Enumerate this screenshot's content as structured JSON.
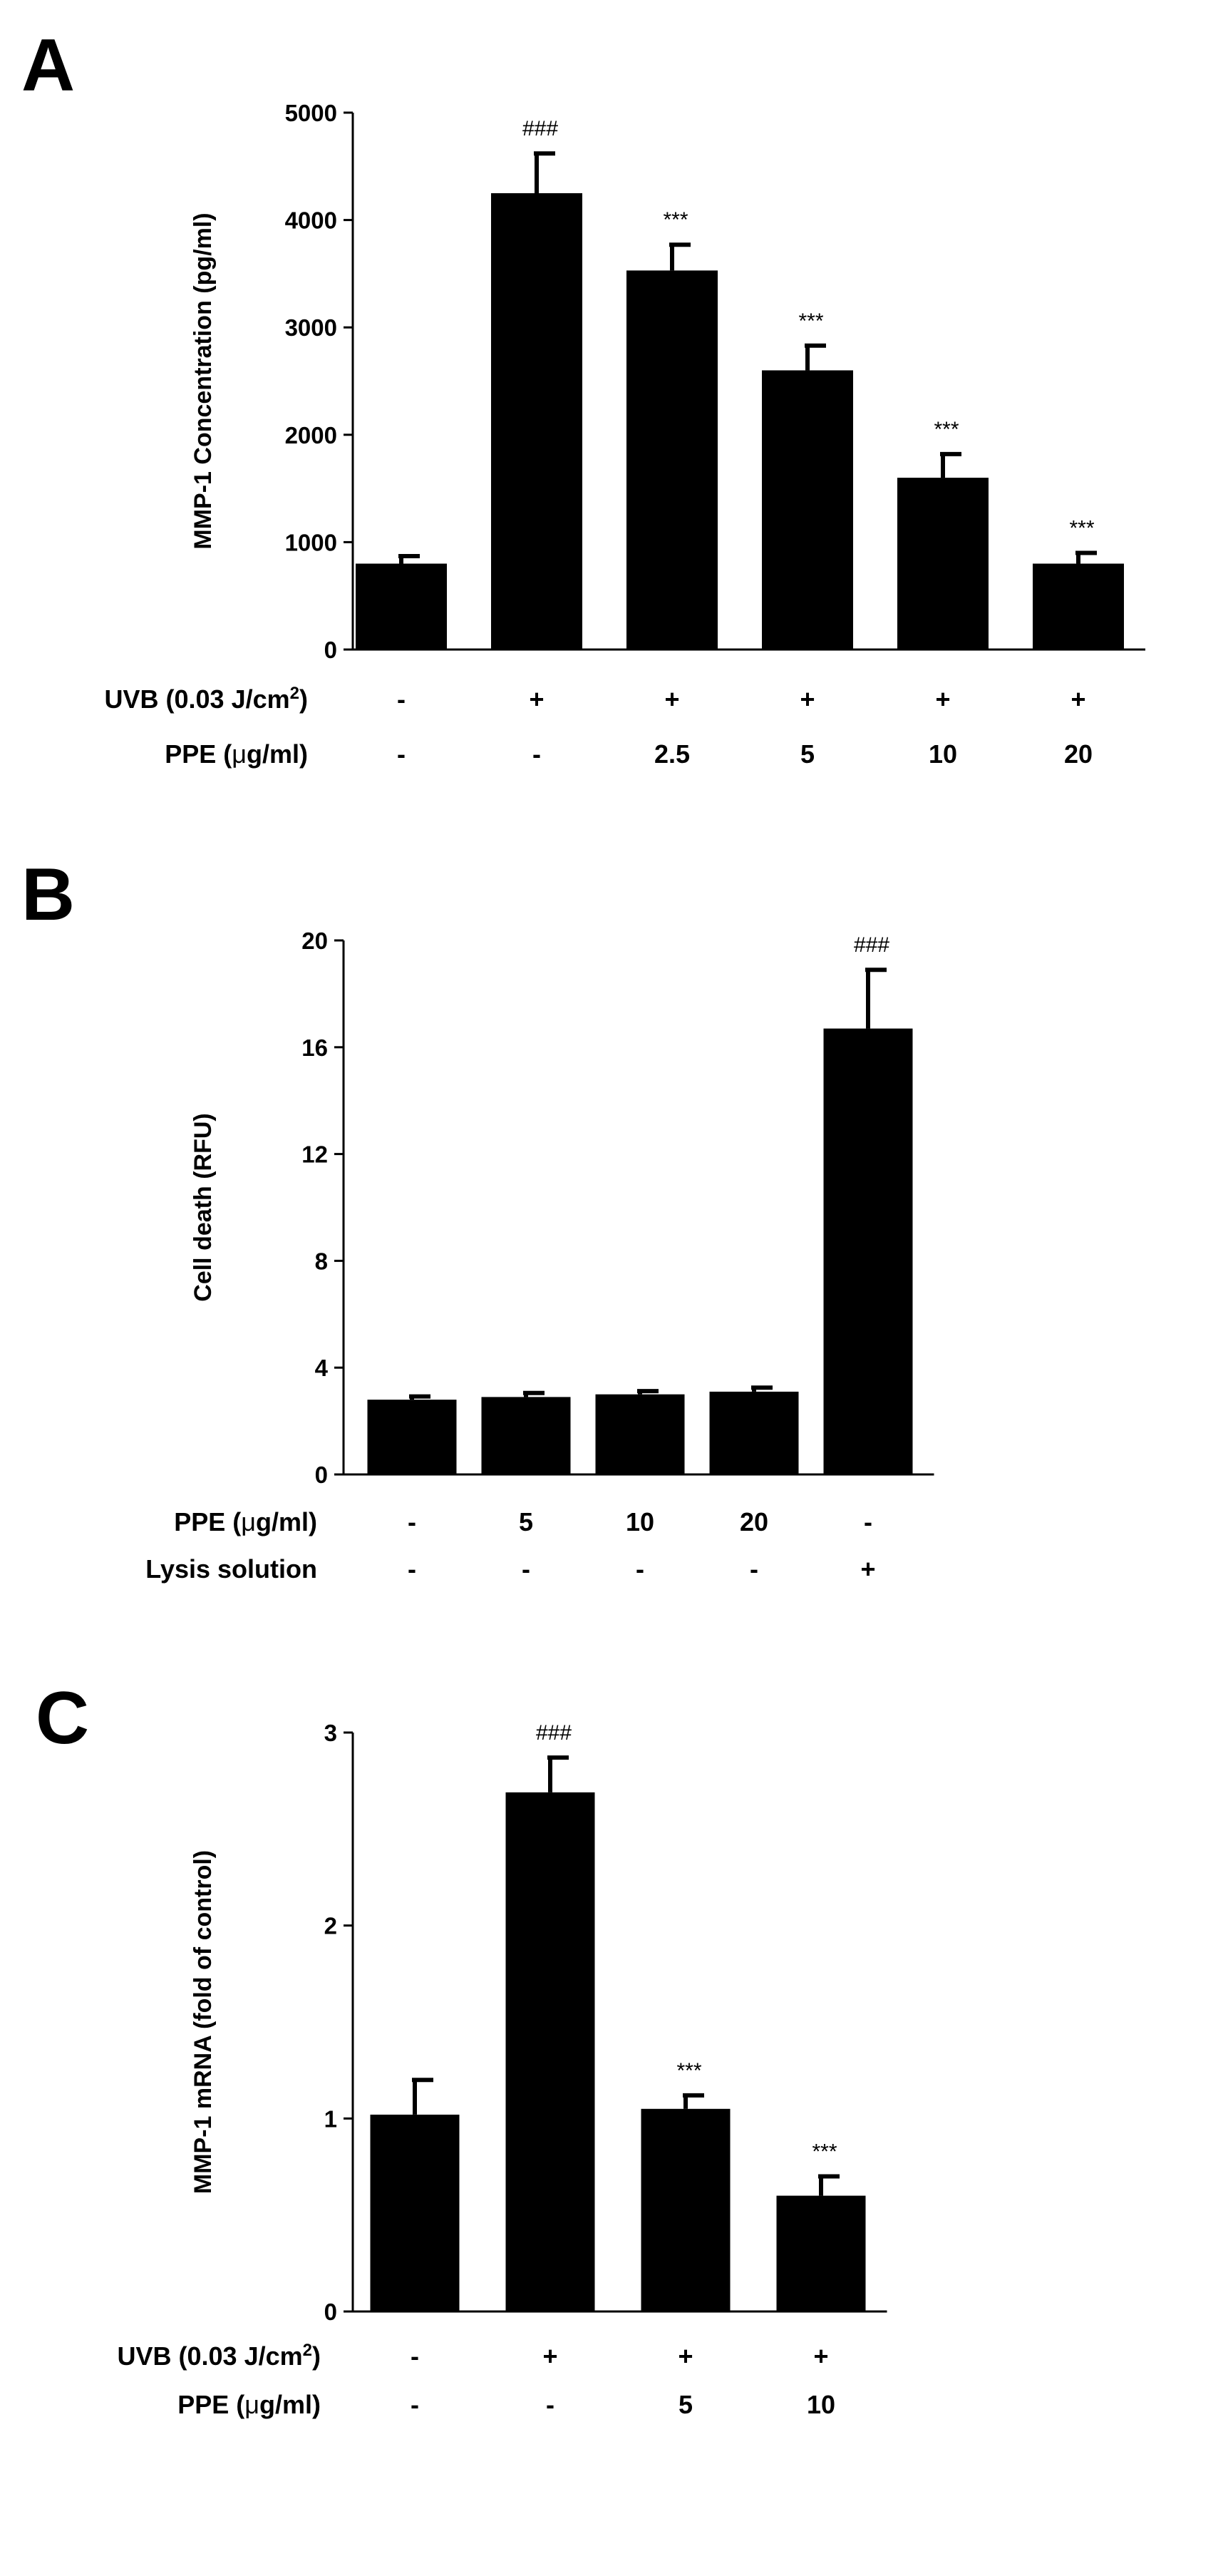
{
  "chart_data": [
    {
      "type": "bar",
      "panel": "A",
      "ylabel": "MMP-1 Concentration (pg/ml)",
      "ylim": [
        0,
        5000
      ],
      "yticks": [
        "0",
        "1000",
        "2000",
        "3000",
        "4000",
        "5000"
      ],
      "values": [
        800,
        4250,
        3530,
        2600,
        1600,
        800
      ],
      "errors": [
        70,
        370,
        240,
        230,
        220,
        100
      ],
      "significance": [
        "",
        "###",
        "***",
        "***",
        "***",
        "***"
      ],
      "rows": [
        {
          "label": "UVB (0.03 J/cm",
          "sup": "2",
          "label_end": ")",
          "values": [
            "-",
            "+",
            "+",
            "+",
            "+",
            "+"
          ]
        },
        {
          "label": "PPE (",
          "mu": "μ",
          "label_end": "g/ml)",
          "values": [
            "-",
            "-",
            "2.5",
            "5",
            "10",
            "20"
          ]
        }
      ]
    },
    {
      "type": "bar",
      "panel": "B",
      "ylabel": "Cell death (RFU)",
      "ylim": [
        0,
        20
      ],
      "yticks": [
        "0",
        "4",
        "8",
        "12",
        "16",
        "20"
      ],
      "values": [
        2.8,
        2.9,
        3.0,
        3.1,
        16.7
      ],
      "errors": [
        0.12,
        0.15,
        0.12,
        0.15,
        2.2
      ],
      "significance": [
        "",
        "",
        "",
        "",
        "###"
      ],
      "rows": [
        {
          "label": "PPE (",
          "mu": "μ",
          "label_end": "g/ml)",
          "values": [
            "-",
            "5",
            "10",
            "20",
            "-"
          ]
        },
        {
          "label": "Lysis solution",
          "values": [
            "-",
            "-",
            "-",
            "-",
            "+"
          ]
        }
      ]
    },
    {
      "type": "bar",
      "panel": "C",
      "ylabel": "MMP-1 mRNA (fold of control)",
      "ylim": [
        0,
        3
      ],
      "yticks": [
        "0",
        "1",
        "2",
        "3"
      ],
      "values": [
        1.02,
        2.69,
        1.05,
        0.6
      ],
      "errors": [
        0.18,
        0.18,
        0.07,
        0.1
      ],
      "significance": [
        "",
        "###",
        "***",
        "***"
      ],
      "rows": [
        {
          "label": "UVB (0.03 J/cm",
          "sup": "2",
          "label_end": ")",
          "values": [
            "-",
            "+",
            "+",
            "+"
          ]
        },
        {
          "label": "PPE (",
          "mu": "μ",
          "label_end": "g/ml)",
          "values": [
            "-",
            "-",
            "5",
            "10"
          ]
        }
      ]
    }
  ],
  "colors": {
    "bar": "#000000",
    "axis": "#000000",
    "background": "#ffffff"
  }
}
